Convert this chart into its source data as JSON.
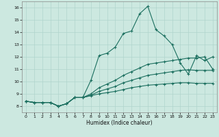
{
  "title": "",
  "xlabel": "Humidex (Indice chaleur)",
  "ylabel": "",
  "xlim": [
    -0.5,
    23.5
  ],
  "ylim": [
    7.5,
    16.5
  ],
  "xticks": [
    0,
    1,
    2,
    3,
    4,
    5,
    6,
    7,
    8,
    9,
    10,
    11,
    12,
    13,
    14,
    15,
    16,
    17,
    18,
    19,
    20,
    21,
    22,
    23
  ],
  "yticks": [
    8,
    9,
    10,
    11,
    12,
    13,
    14,
    15,
    16
  ],
  "bg_color": "#cce8e0",
  "line_color": "#1a6e5e",
  "grid_color": "#b0d4cc",
  "series": [
    [
      8.4,
      8.3,
      8.3,
      8.3,
      8.0,
      8.2,
      8.7,
      8.7,
      10.1,
      12.1,
      12.3,
      12.8,
      13.9,
      14.1,
      15.5,
      16.1,
      14.2,
      13.7,
      13.0,
      11.5,
      10.6,
      12.1,
      11.7,
      12.0
    ],
    [
      8.4,
      8.3,
      8.3,
      8.3,
      8.0,
      8.2,
      8.7,
      8.7,
      9.0,
      9.5,
      9.8,
      10.1,
      10.5,
      10.8,
      11.1,
      11.4,
      11.5,
      11.6,
      11.7,
      11.8,
      11.9,
      11.9,
      12.0,
      11.0
    ],
    [
      8.4,
      8.3,
      8.3,
      8.3,
      8.0,
      8.2,
      8.7,
      8.7,
      8.9,
      9.2,
      9.4,
      9.6,
      9.9,
      10.1,
      10.3,
      10.5,
      10.6,
      10.7,
      10.8,
      10.9,
      10.95,
      10.9,
      10.9,
      10.9
    ],
    [
      8.4,
      8.3,
      8.3,
      8.3,
      8.0,
      8.2,
      8.7,
      8.7,
      8.85,
      9.0,
      9.1,
      9.2,
      9.35,
      9.5,
      9.6,
      9.7,
      9.75,
      9.8,
      9.85,
      9.9,
      9.9,
      9.85,
      9.85,
      9.85
    ]
  ]
}
